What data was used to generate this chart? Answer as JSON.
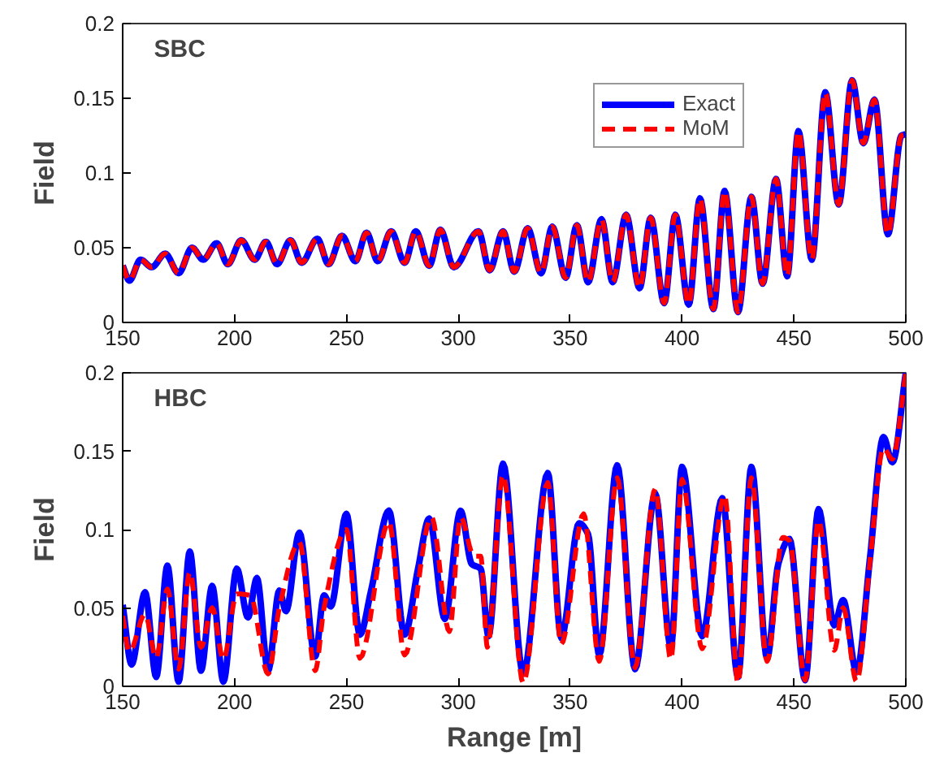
{
  "chart_data": [
    {
      "type": "line",
      "annotations": [
        "SBC"
      ],
      "ylabel": "Field",
      "xlim": [
        150,
        500
      ],
      "ylim": [
        0,
        0.2
      ],
      "xticks": [
        150,
        200,
        250,
        300,
        350,
        400,
        450,
        500
      ],
      "yticks": [
        0,
        0.05,
        0.1,
        0.15,
        0.2
      ],
      "grid": false,
      "legend": "top right",
      "series": [
        {
          "name": "Exact",
          "color": "#0000ff",
          "line_style": "solid",
          "x": [
            150,
            153,
            158,
            163,
            169,
            175,
            181,
            186,
            192,
            197,
            203,
            209,
            214,
            219,
            225,
            230,
            237,
            242,
            248,
            254,
            259,
            264,
            270,
            276,
            281,
            287,
            292,
            298,
            309,
            314,
            320,
            325,
            331,
            337,
            342,
            348,
            353,
            358,
            364,
            369,
            375,
            381,
            386,
            392,
            397,
            403,
            408,
            414,
            419,
            425,
            431,
            436,
            442,
            447,
            452,
            458,
            464,
            470,
            476,
            481,
            486,
            492,
            498,
            500
          ],
          "values": [
            0.038,
            0.028,
            0.042,
            0.037,
            0.046,
            0.033,
            0.05,
            0.042,
            0.053,
            0.039,
            0.055,
            0.042,
            0.054,
            0.039,
            0.055,
            0.04,
            0.056,
            0.039,
            0.058,
            0.041,
            0.06,
            0.041,
            0.061,
            0.04,
            0.061,
            0.038,
            0.062,
            0.037,
            0.061,
            0.035,
            0.061,
            0.034,
            0.063,
            0.033,
            0.064,
            0.03,
            0.065,
            0.027,
            0.069,
            0.027,
            0.072,
            0.023,
            0.07,
            0.013,
            0.072,
            0.012,
            0.083,
            0.009,
            0.088,
            0.007,
            0.084,
            0.026,
            0.096,
            0.031,
            0.128,
            0.042,
            0.154,
            0.079,
            0.162,
            0.12,
            0.149,
            0.059,
            0.125,
            0.126
          ]
        },
        {
          "name": "MoM",
          "color": "#ff0000",
          "line_style": "dashed",
          "x": [
            150,
            153,
            158,
            163,
            169,
            175,
            181,
            186,
            192,
            197,
            203,
            209,
            214,
            219,
            225,
            230,
            237,
            242,
            248,
            254,
            259,
            264,
            270,
            276,
            281,
            287,
            292,
            298,
            309,
            314,
            320,
            325,
            331,
            337,
            342,
            348,
            353,
            358,
            364,
            369,
            375,
            381,
            386,
            392,
            397,
            403,
            408,
            414,
            419,
            425,
            431,
            436,
            442,
            447,
            452,
            458,
            464,
            470,
            476,
            481,
            486,
            492,
            498,
            500
          ],
          "values": [
            0.038,
            0.028,
            0.042,
            0.037,
            0.046,
            0.033,
            0.05,
            0.042,
            0.053,
            0.039,
            0.055,
            0.042,
            0.054,
            0.039,
            0.055,
            0.04,
            0.056,
            0.039,
            0.058,
            0.041,
            0.06,
            0.041,
            0.061,
            0.04,
            0.061,
            0.038,
            0.062,
            0.037,
            0.061,
            0.035,
            0.061,
            0.034,
            0.063,
            0.033,
            0.064,
            0.03,
            0.065,
            0.027,
            0.069,
            0.027,
            0.072,
            0.023,
            0.07,
            0.013,
            0.072,
            0.012,
            0.083,
            0.009,
            0.088,
            0.007,
            0.084,
            0.026,
            0.096,
            0.031,
            0.128,
            0.042,
            0.154,
            0.079,
            0.162,
            0.12,
            0.149,
            0.059,
            0.125,
            0.126
          ]
        }
      ]
    },
    {
      "type": "line",
      "annotations": [
        "HBC"
      ],
      "xlabel": "Range [m]",
      "ylabel": "Field",
      "xlim": [
        150,
        500
      ],
      "ylim": [
        0,
        0.2
      ],
      "xticks": [
        150,
        200,
        250,
        300,
        350,
        400,
        450,
        500
      ],
      "yticks": [
        0,
        0.05,
        0.1,
        0.15,
        0.2
      ],
      "grid": false,
      "series": [
        {
          "color": "#0000ff",
          "line_style": "solid",
          "x": [
            150,
            154,
            160,
            165,
            170,
            175,
            180,
            185,
            190,
            195,
            201,
            206,
            210,
            215,
            220,
            223,
            229,
            236,
            240,
            243,
            250,
            256,
            261,
            269,
            276,
            282,
            287,
            294,
            301,
            306,
            310,
            313.5,
            320,
            329,
            340,
            346,
            354,
            358,
            363,
            371,
            379,
            388,
            395,
            400,
            409,
            418,
            425,
            431,
            438,
            443,
            448,
            455,
            461,
            468,
            472,
            478,
            484,
            490,
            494,
            500
          ],
          "values": [
            0.052,
            0.014,
            0.06,
            0.006,
            0.077,
            0.003,
            0.086,
            0.01,
            0.064,
            0.003,
            0.075,
            0.044,
            0.069,
            0.01,
            0.061,
            0.048,
            0.098,
            0.019,
            0.058,
            0.051,
            0.11,
            0.033,
            0.061,
            0.112,
            0.033,
            0.075,
            0.107,
            0.043,
            0.112,
            0.078,
            0.075,
            0.032,
            0.142,
            0.008,
            0.136,
            0.031,
            0.104,
            0.097,
            0.02,
            0.141,
            0.011,
            0.123,
            0.025,
            0.14,
            0.032,
            0.12,
            0.006,
            0.14,
            0.018,
            0.078,
            0.094,
            0.004,
            0.113,
            0.039,
            0.055,
            0.009,
            0.082,
            0.159,
            0.143,
            0.2
          ]
        },
        {
          "color": "#ff0000",
          "line_style": "dashed",
          "x": [
            150,
            153,
            160,
            165,
            170,
            175,
            180,
            185,
            190,
            195,
            201,
            207,
            215,
            220,
            229,
            236,
            240,
            250,
            256,
            269,
            276,
            288,
            296,
            301,
            307,
            310,
            313,
            320,
            329,
            340,
            346,
            356,
            363,
            371,
            379,
            388,
            395,
            400,
            409,
            419,
            425,
            431,
            438,
            445,
            448,
            455,
            461,
            468,
            472,
            478,
            484,
            490,
            494,
            500
          ],
          "values": [
            0.045,
            0.022,
            0.046,
            0.018,
            0.062,
            0.011,
            0.073,
            0.025,
            0.05,
            0.017,
            0.059,
            0.058,
            0.008,
            0.05,
            0.092,
            0.01,
            0.05,
            0.1,
            0.018,
            0.105,
            0.02,
            0.108,
            0.035,
            0.108,
            0.083,
            0.083,
            0.025,
            0.135,
            0.002,
            0.13,
            0.027,
            0.11,
            0.016,
            0.133,
            0.012,
            0.126,
            0.017,
            0.132,
            0.024,
            0.122,
            0.002,
            0.133,
            0.016,
            0.095,
            0.093,
            0.004,
            0.106,
            0.023,
            0.05,
            0.003,
            0.08,
            0.152,
            0.145,
            0.2
          ]
        }
      ]
    }
  ]
}
